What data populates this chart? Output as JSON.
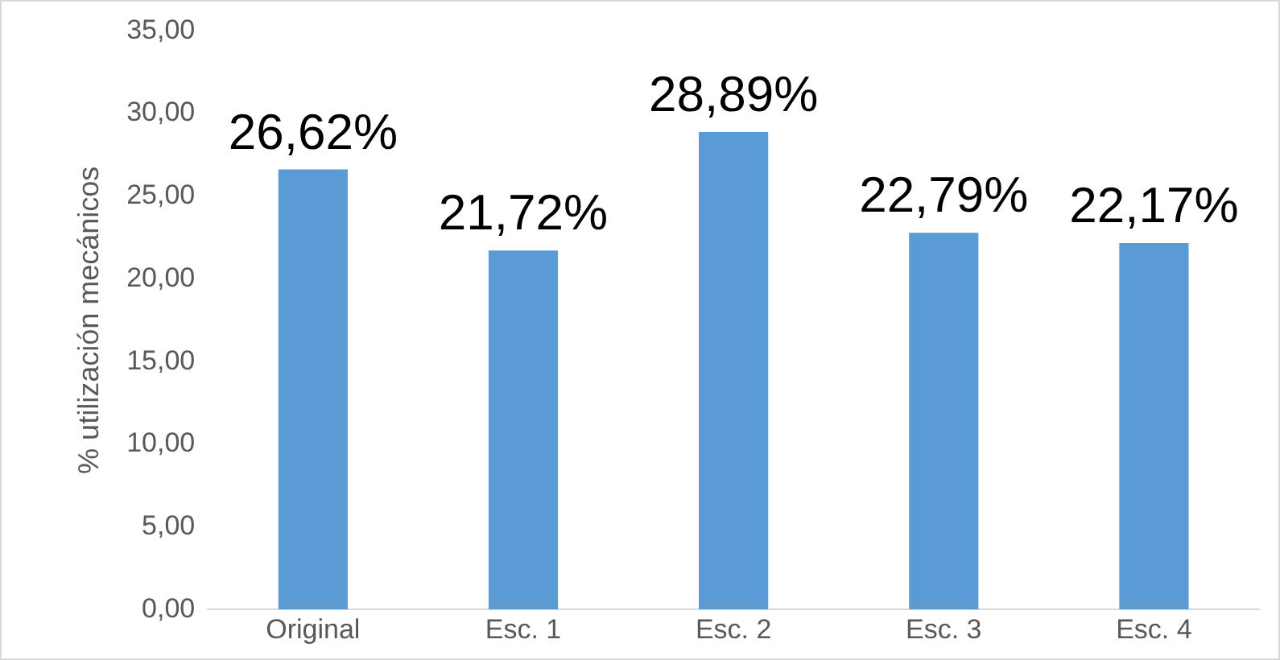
{
  "chart_data": {
    "type": "bar",
    "ylabel": "% utilización mecánicos",
    "categories": [
      "Original",
      "Esc. 1",
      "Esc. 2",
      "Esc. 3",
      "Esc. 4"
    ],
    "values": [
      26.62,
      21.72,
      28.89,
      22.79,
      22.17
    ],
    "color": "#5b9bd5",
    "value_labels": [
      "26,62%",
      "21,72%",
      "28,89%",
      "22,79%",
      "22,17%"
    ],
    "ylim": [
      0,
      35
    ],
    "yticks": [
      {
        "value": 0,
        "label": "0,00"
      },
      {
        "value": 5,
        "label": "5,00"
      },
      {
        "value": 10,
        "label": "10,00"
      },
      {
        "value": 15,
        "label": "15,00"
      },
      {
        "value": 20,
        "label": "20,00"
      },
      {
        "value": 25,
        "label": "25,00"
      },
      {
        "value": 30,
        "label": "30,00"
      },
      {
        "value": 35,
        "label": "35,00"
      }
    ],
    "grid": false,
    "legend": false
  }
}
